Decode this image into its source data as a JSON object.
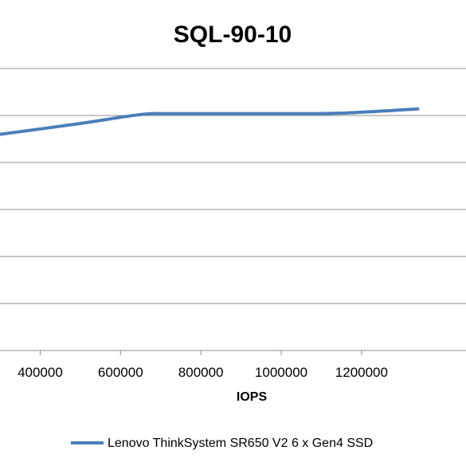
{
  "chart_data": {
    "type": "line",
    "title": "SQL-90-10",
    "xlabel": "IOPS",
    "ylabel": "",
    "xlim": [
      300000,
      1460000
    ],
    "x_ticks": [
      400000,
      600000,
      800000,
      1000000,
      1200000
    ],
    "x_tick_labels": [
      "400000",
      "600000",
      "800000",
      "1000000",
      "1200000"
    ],
    "ylim": [
      0,
      6
    ],
    "y_gridlines": [
      1,
      2,
      3,
      4,
      5,
      6
    ],
    "grid": true,
    "legend_position": "bottom",
    "series": [
      {
        "name": "Lenovo ThinkSystem SR650 V2 6 x Gen4 SSD",
        "color": "#4a7ebb",
        "x": [
          300000,
          500000,
          650000,
          740000,
          1000000,
          1150000,
          1340000
        ],
        "y": [
          4.6,
          4.83,
          5.02,
          5.04,
          5.04,
          5.05,
          5.14
        ]
      }
    ]
  }
}
